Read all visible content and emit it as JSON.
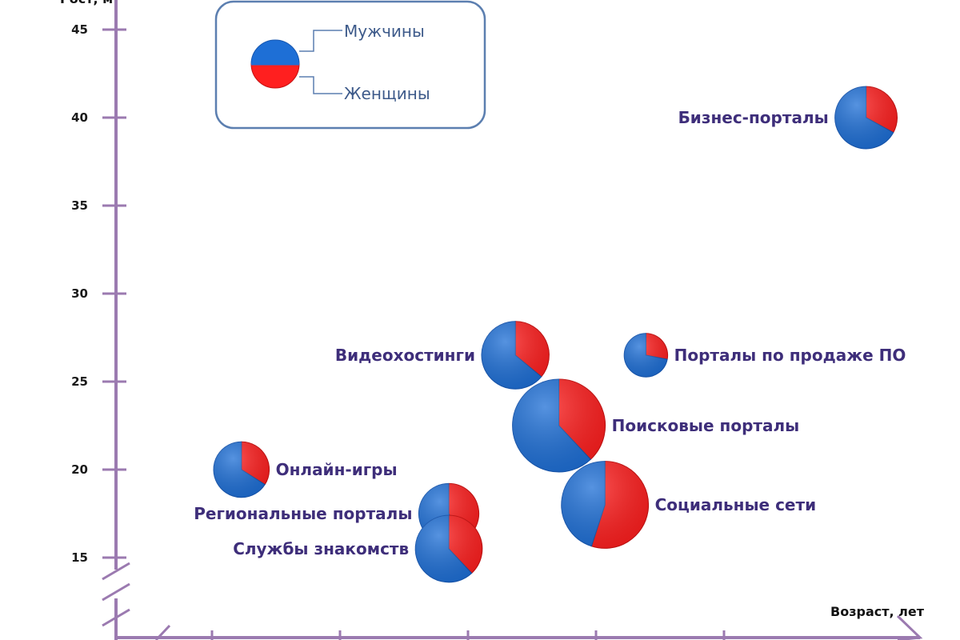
{
  "chart_data": {
    "type": "pie-bubble",
    "title": "",
    "xlabel": "Возраст, лет",
    "ylabel": "",
    "xlim": [
      14,
      45
    ],
    "ylim": [
      12,
      47
    ],
    "y_ticks": [
      15,
      20,
      25,
      30,
      35,
      40,
      45
    ],
    "axis_break": true,
    "grid": false,
    "legend_position": "top-left",
    "legend": [
      {
        "name": "Мужчины",
        "color": "#1e6fd6"
      },
      {
        "name": "Женщины",
        "color": "#ff1f1f"
      }
    ],
    "points": [
      {
        "label": "Бизнес-порталы",
        "x": 44.3,
        "y": 40,
        "men_share": 0.67,
        "size": 0.45,
        "label_side": "left"
      },
      {
        "label": "Видеохостинги",
        "x": 30.6,
        "y": 26.5,
        "men_share": 0.64,
        "size": 0.53,
        "label_side": "left"
      },
      {
        "label": "Порталы по продаже ПО",
        "x": 35.7,
        "y": 26.5,
        "men_share": 0.72,
        "size": 0.22,
        "label_side": "right"
      },
      {
        "label": "Поисковые порталы",
        "x": 32.3,
        "y": 22.5,
        "men_share": 0.62,
        "size": 1.0,
        "label_side": "right"
      },
      {
        "label": "Онлайн-игры",
        "x": 19.9,
        "y": 20,
        "men_share": 0.66,
        "size": 0.36,
        "label_side": "right"
      },
      {
        "label": "Социальные сети",
        "x": 34.1,
        "y": 18,
        "men_share": 0.45,
        "size": 0.88,
        "label_side": "right"
      },
      {
        "label": "Региональные порталы",
        "x": 28.0,
        "y": 17.5,
        "men_share": 0.58,
        "size": 0.42,
        "label_side": "left"
      },
      {
        "label": "Службы знакомств",
        "x": 28.0,
        "y": 15.5,
        "men_share": 0.62,
        "size": 0.52,
        "label_side": "left"
      }
    ]
  }
}
